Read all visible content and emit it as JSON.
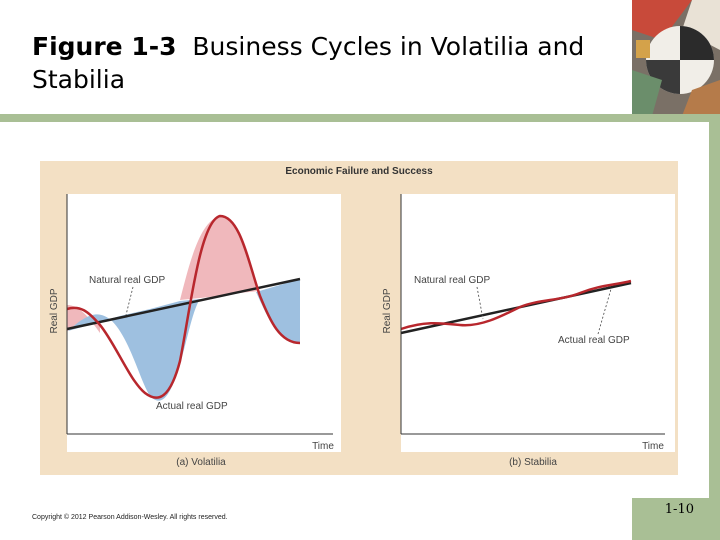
{
  "slide": {
    "title_bold": "Figure 1-3",
    "title_rest": "Business Cycles in Volatilia and Stabilia",
    "copyright": "Copyright © 2012 Pearson Addison-Wesley. All rights reserved.",
    "slide_number": "1-10"
  },
  "figure": {
    "title": "Economic Failure and Success",
    "colors": {
      "actual": "#b8272d",
      "natural": "#222222",
      "above": "#f0b8bc",
      "below": "#9ec0e0",
      "panel": "#f3e0c4"
    }
  },
  "panel_a": {
    "caption": "(a) Volatilia",
    "ylabel": "Real GDP",
    "xlabel": "Time",
    "natural_label": "Natural real GDP",
    "actual_label": "Actual real GDP"
  },
  "panel_b": {
    "caption": "(b) Stabilia",
    "ylabel": "Real GDP",
    "xlabel": "Time",
    "natural_label": "Natural real GDP",
    "actual_label": "Actual real GDP"
  }
}
